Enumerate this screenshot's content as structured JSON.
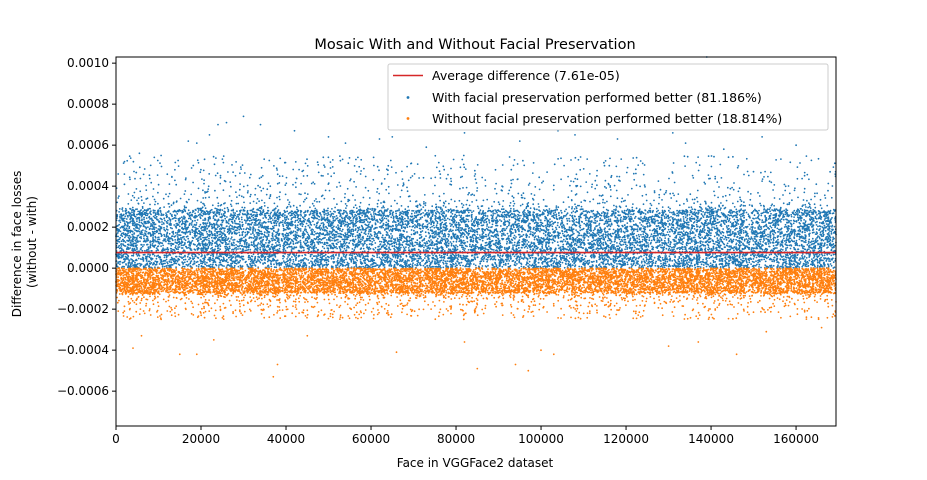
{
  "chart_data": {
    "type": "scatter",
    "title": "Mosaic With and Without Facial Preservation",
    "xlabel": "Face in VGGFace2 dataset",
    "ylabel_lines": [
      "Difference in face losses",
      "(without - with)"
    ],
    "xlim": [
      0,
      169396
    ],
    "ylim": [
      -0.00077,
      0.00103
    ],
    "x_ticks": [
      0,
      20000,
      40000,
      60000,
      80000,
      100000,
      120000,
      140000,
      160000
    ],
    "x_tick_labels": [
      "0",
      "20000",
      "40000",
      "60000",
      "80000",
      "100000",
      "120000",
      "140000",
      "160000"
    ],
    "y_ticks": [
      -0.0006,
      -0.0004,
      -0.0002,
      0.0,
      0.0002,
      0.0004,
      0.0006,
      0.0008,
      0.001
    ],
    "y_tick_labels": [
      "−0.0006",
      "−0.0004",
      "−0.0002",
      "0.0000",
      "0.0002",
      "0.0004",
      "0.0006",
      "0.0008",
      "0.0010"
    ],
    "legend_position": "top-right",
    "average_line": {
      "name": "Average difference (7.61e-05)",
      "value": 7.61e-05,
      "color": "#d62728"
    },
    "series": [
      {
        "name": "With facial preservation performed better (81.186%)",
        "color": "#1f77b4",
        "share_percent": 81.186,
        "dense_band": [
          0.0,
          0.00028
        ],
        "typical_max": 0.00055,
        "outliers": [
          [
            2000,
            0.00052
          ],
          [
            5500,
            0.00056
          ],
          [
            9000,
            0.00054
          ],
          [
            17000,
            0.00062
          ],
          [
            19000,
            0.00061
          ],
          [
            22000,
            0.00065
          ],
          [
            24000,
            0.0007
          ],
          [
            26000,
            0.00071
          ],
          [
            30000,
            0.00074
          ],
          [
            34000,
            0.0007
          ],
          [
            42000,
            0.00067
          ],
          [
            50000,
            0.00064
          ],
          [
            54000,
            0.00061
          ],
          [
            62000,
            0.00063
          ],
          [
            65000,
            0.00064
          ],
          [
            73000,
            0.00059
          ],
          [
            82000,
            0.00066
          ],
          [
            95000,
            0.00062
          ],
          [
            104000,
            0.00067
          ],
          [
            108000,
            0.00065
          ],
          [
            118000,
            0.00063
          ],
          [
            131000,
            0.00066
          ],
          [
            134000,
            0.00061
          ],
          [
            139000,
            0.00103
          ],
          [
            143000,
            0.00058
          ],
          [
            152000,
            0.00064
          ],
          [
            160000,
            0.0006
          ],
          [
            168000,
            0.00047
          ]
        ]
      },
      {
        "name": "Without facial preservation performed better (18.814%)",
        "color": "#ff7f0e",
        "share_percent": 18.814,
        "dense_band": [
          -0.00012,
          0.0
        ],
        "typical_min": -0.00025,
        "outliers": [
          [
            4000,
            -0.00039
          ],
          [
            6000,
            -0.00033
          ],
          [
            15000,
            -0.00042
          ],
          [
            19000,
            -0.00042
          ],
          [
            23000,
            -0.00035
          ],
          [
            37000,
            -0.00053
          ],
          [
            38000,
            -0.00047
          ],
          [
            45000,
            -0.00033
          ],
          [
            66000,
            -0.00041
          ],
          [
            82000,
            -0.00036
          ],
          [
            85000,
            -0.00049
          ],
          [
            94000,
            -0.00047
          ],
          [
            97000,
            -0.0005
          ],
          [
            100000,
            -0.0004
          ],
          [
            103000,
            -0.00042
          ],
          [
            130000,
            -0.00038
          ],
          [
            137000,
            -0.00036
          ],
          [
            146000,
            -0.00042
          ],
          [
            153000,
            -0.00031
          ],
          [
            166000,
            -0.00029
          ]
        ]
      }
    ]
  }
}
